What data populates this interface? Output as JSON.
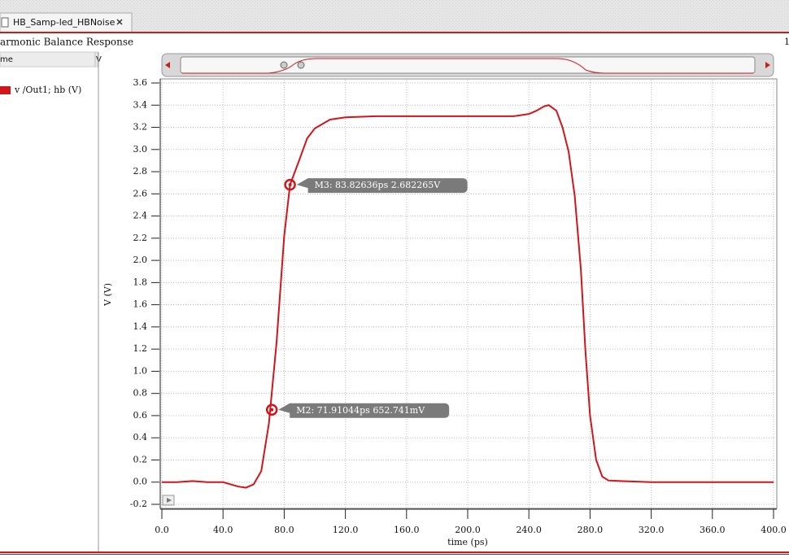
{
  "tab": {
    "title": "HB_Samp-led_HBNoise"
  },
  "panel": {
    "title": "armonic Balance Response",
    "page": "1"
  },
  "legend_header": {
    "name": "me",
    "value": "V"
  },
  "chart_data": {
    "type": "line",
    "xlabel": "time (ps)",
    "ylabel": "V (V)",
    "xlim": [
      0,
      400
    ],
    "ylim": [
      -0.2,
      3.6
    ],
    "xticks": [
      {
        "value": 0,
        "label": "0.0"
      },
      {
        "value": 40,
        "label": "40.0"
      },
      {
        "value": 80,
        "label": "80.0"
      },
      {
        "value": 120,
        "label": "120.0"
      },
      {
        "value": 160,
        "label": "160.0"
      },
      {
        "value": 200,
        "label": "200.0"
      },
      {
        "value": 240,
        "label": "240.0"
      },
      {
        "value": 280,
        "label": "280.0"
      },
      {
        "value": 320,
        "label": "320.0"
      },
      {
        "value": 360,
        "label": "360.0"
      },
      {
        "value": 400,
        "label": "400.0"
      }
    ],
    "yticks": [
      -0.2,
      {
        "value": 0,
        "label": "0.0"
      },
      0.2,
      0.4,
      0.6,
      0.8,
      {
        "value": 1,
        "label": "1.0"
      },
      1.2,
      1.4,
      1.6,
      1.8,
      {
        "value": 2,
        "label": "2.0"
      },
      2.2,
      2.4,
      2.6,
      2.8,
      {
        "value": 3,
        "label": "3.0"
      },
      3.2,
      3.4,
      3.6
    ],
    "grid": true,
    "x": [
      0,
      10,
      20,
      30,
      40,
      50,
      55,
      60,
      65,
      70,
      75,
      80,
      83.82636,
      90,
      95,
      100,
      110,
      120,
      140,
      200,
      230,
      240,
      245,
      250,
      253,
      258,
      262,
      266,
      270,
      274,
      277,
      280,
      284,
      288,
      292,
      300,
      320,
      400
    ],
    "series": [
      {
        "name": "v /Out1; hb (V)",
        "color": "#d0161b",
        "values": [
          0.0,
          0.0,
          0.01,
          0.0,
          0.0,
          -0.04,
          -0.05,
          -0.02,
          0.1,
          0.53,
          1.26,
          2.22,
          2.682265,
          2.91,
          3.1,
          3.19,
          3.27,
          3.29,
          3.3,
          3.3,
          3.3,
          3.32,
          3.35,
          3.39,
          3.4,
          3.35,
          3.2,
          2.98,
          2.58,
          1.92,
          1.18,
          0.6,
          0.2,
          0.05,
          0.015,
          0.01,
          0.0,
          0.0
        ]
      }
    ],
    "markers": [
      {
        "x": 71.91044,
        "y": 0.652741,
        "label": "M2: 71.91044ps 652.741mV"
      },
      {
        "x": 83.82636,
        "y": 2.682265,
        "label": "M3: 83.82636ps 2.682265V"
      }
    ]
  }
}
